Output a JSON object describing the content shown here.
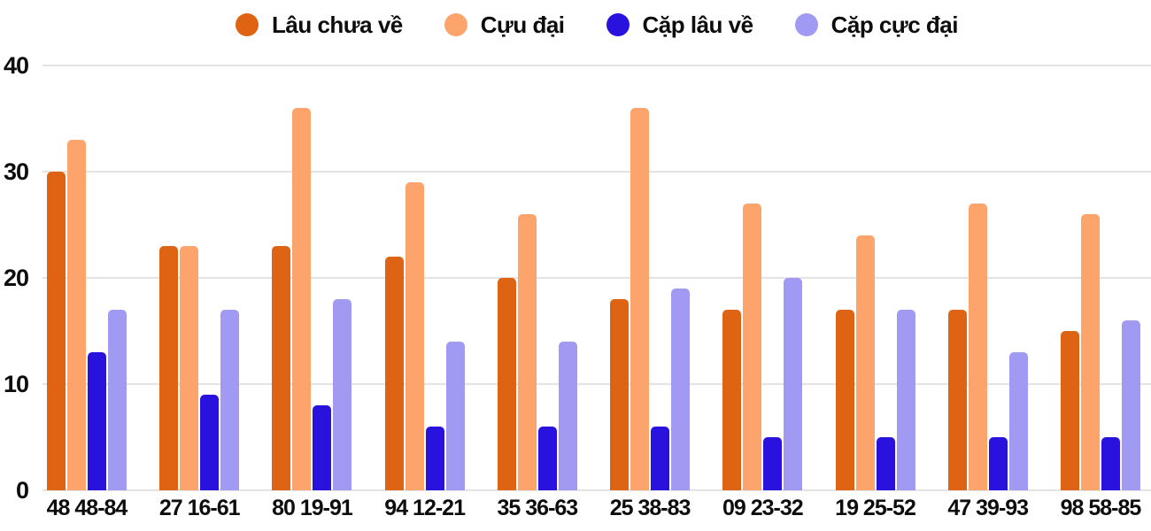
{
  "chart_data": {
    "type": "bar",
    "title": "",
    "xlabel": "",
    "ylabel": "",
    "legend_position": "top",
    "grid": true,
    "background_color": "#ffffff",
    "gridline_color": "#e4e4e4",
    "text_color": "#0d0d0d",
    "y_axis": {
      "ticks": [
        0,
        10,
        20,
        30,
        40
      ],
      "min": 0,
      "max": 40
    },
    "categories": [
      "48 48-84",
      "27 16-61",
      "80 19-91",
      "94 12-21",
      "35 36-63",
      "25 38-83",
      "09 23-32",
      "19 25-52",
      "47 39-93",
      "98 58-85"
    ],
    "series": [
      {
        "name": "Lâu chưa về",
        "color": "#de6413",
        "values": [
          30,
          23,
          23,
          22,
          20,
          18,
          17,
          17,
          17,
          15
        ]
      },
      {
        "name": "Cựu đại",
        "color": "#fca46b",
        "values": [
          33,
          23,
          36,
          29,
          26,
          36,
          27,
          24,
          27,
          26
        ]
      },
      {
        "name": "Cặp lâu về",
        "color": "#2912de",
        "values": [
          13,
          9,
          8,
          6,
          6,
          6,
          5,
          5,
          5,
          5
        ]
      },
      {
        "name": "Cặp cực đại",
        "color": "#a09af3",
        "values": [
          17,
          17,
          18,
          14,
          14,
          19,
          20,
          17,
          13,
          16
        ]
      }
    ]
  }
}
